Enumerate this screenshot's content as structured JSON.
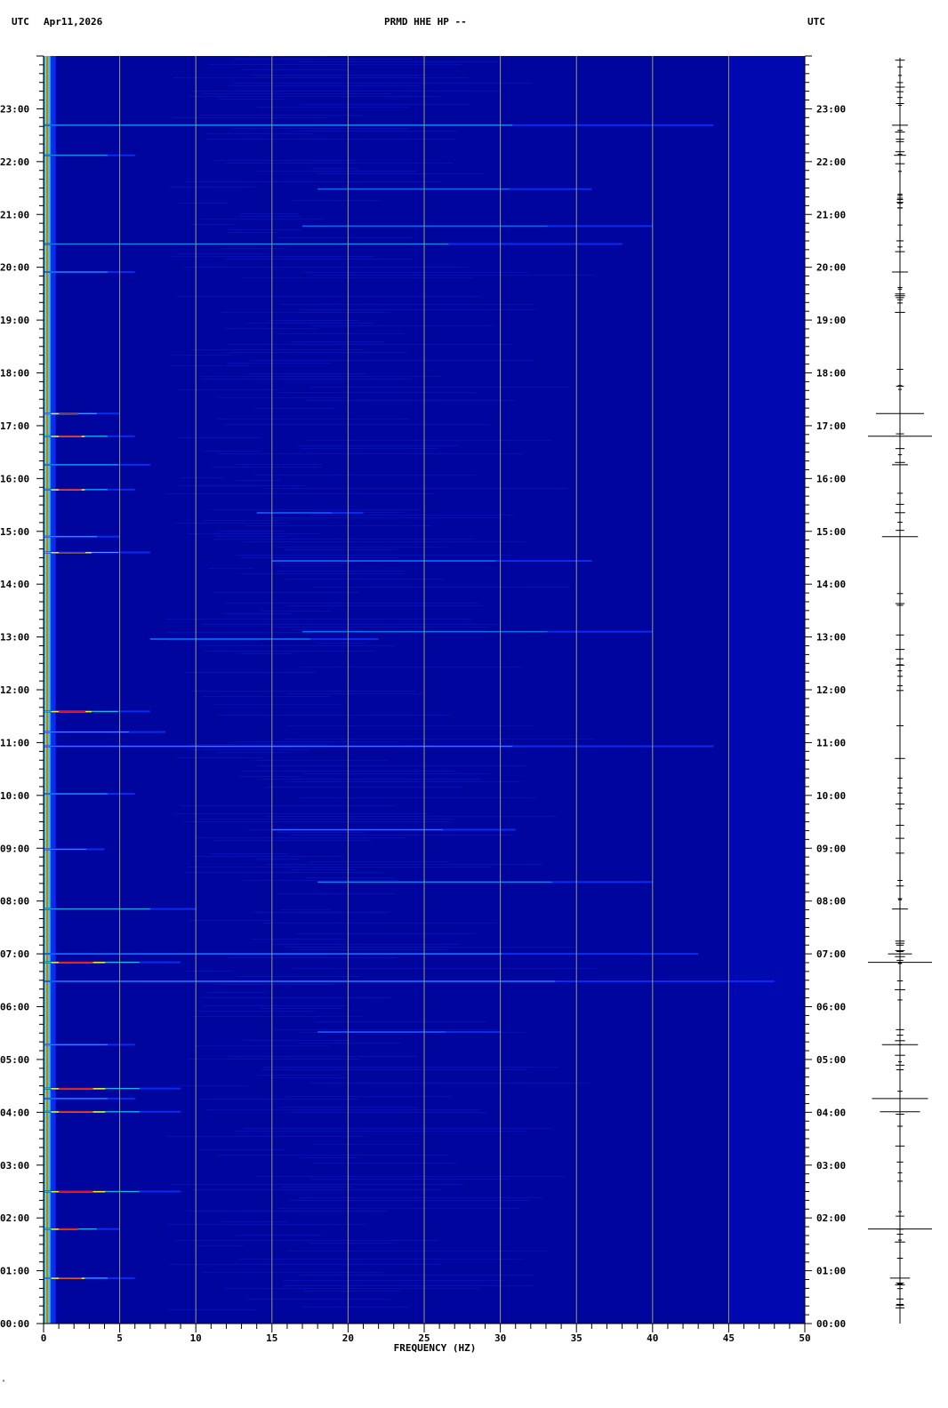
{
  "header": {
    "left_timezone": "UTC",
    "date": "Apr11,2026",
    "station": "PRMD HHE HP --",
    "right_timezone": "UTC"
  },
  "footer_mark": "ᴬ",
  "chart_data": {
    "type": "heatmap",
    "title": "PRMD HHE HP --",
    "xlabel": "FREQUENCY (HZ)",
    "ylabel": "",
    "xlim": [
      0,
      50
    ],
    "ylim": [
      0,
      24
    ],
    "x_ticks": [
      "0",
      "5",
      "10",
      "15",
      "20",
      "25",
      "30",
      "35",
      "40",
      "45",
      "50"
    ],
    "y_ticks": [
      "00:00",
      "01:00",
      "02:00",
      "03:00",
      "04:00",
      "05:00",
      "06:00",
      "07:00",
      "08:00",
      "09:00",
      "10:00",
      "11:00",
      "12:00",
      "13:00",
      "14:00",
      "15:00",
      "16:00",
      "17:00",
      "18:00",
      "19:00",
      "20:00",
      "21:00",
      "22:00",
      "23:00"
    ],
    "grid_x_hz": [
      5,
      10,
      15,
      20,
      25,
      30,
      35,
      40,
      45
    ],
    "colors": {
      "background": "#00059e",
      "high_band": "#0008b0",
      "grid": "#9c9c6c",
      "low": "#0a2cf0",
      "mid": "#25d0e0",
      "high": "#f0f020",
      "peak": "#e01010"
    },
    "events": [
      {
        "hour": 22.69,
        "fmin": 0,
        "fmax": 44,
        "level": 0.7
      },
      {
        "hour": 22.12,
        "fmin": 0,
        "fmax": 6,
        "level": 0.7
      },
      {
        "hour": 21.48,
        "fmin": 18,
        "fmax": 36,
        "level": 0.4
      },
      {
        "hour": 20.78,
        "fmin": 17,
        "fmax": 40,
        "level": 0.4
      },
      {
        "hour": 20.44,
        "fmin": 0,
        "fmax": 38,
        "level": 0.55
      },
      {
        "hour": 19.91,
        "fmin": 0,
        "fmax": 6,
        "level": 0.7
      },
      {
        "hour": 17.23,
        "fmin": 0,
        "fmax": 5,
        "level": 0.95
      },
      {
        "hour": 16.8,
        "fmin": 0,
        "fmax": 6,
        "level": 0.95
      },
      {
        "hour": 16.26,
        "fmin": 0,
        "fmax": 7,
        "level": 0.8
      },
      {
        "hour": 15.79,
        "fmin": 0,
        "fmax": 6,
        "level": 0.85
      },
      {
        "hour": 15.35,
        "fmin": 14,
        "fmax": 21,
        "level": 0.4
      },
      {
        "hour": 14.9,
        "fmin": 0,
        "fmax": 5,
        "level": 0.8
      },
      {
        "hour": 14.6,
        "fmin": 0,
        "fmax": 7,
        "level": 0.9
      },
      {
        "hour": 14.44,
        "fmin": 15,
        "fmax": 36,
        "level": 0.5
      },
      {
        "hour": 13.1,
        "fmin": 17,
        "fmax": 40,
        "level": 0.45
      },
      {
        "hour": 12.96,
        "fmin": 7,
        "fmax": 22,
        "level": 0.55
      },
      {
        "hour": 11.59,
        "fmin": 0,
        "fmax": 7,
        "level": 0.95
      },
      {
        "hour": 11.2,
        "fmin": 0,
        "fmax": 8,
        "level": 0.75
      },
      {
        "hour": 10.93,
        "fmin": 0,
        "fmax": 44,
        "level": 0.65
      },
      {
        "hour": 10.03,
        "fmin": 0,
        "fmax": 6,
        "level": 0.75
      },
      {
        "hour": 9.35,
        "fmin": 15,
        "fmax": 31,
        "level": 0.55
      },
      {
        "hour": 8.98,
        "fmin": 0,
        "fmax": 4,
        "level": 0.7
      },
      {
        "hour": 8.36,
        "fmin": 18,
        "fmax": 40,
        "level": 0.6
      },
      {
        "hour": 7.85,
        "fmin": 0,
        "fmax": 10,
        "level": 0.8
      },
      {
        "hour": 7.0,
        "fmin": 0,
        "fmax": 43,
        "level": 0.6
      },
      {
        "hour": 6.84,
        "fmin": 0,
        "fmax": 9,
        "level": 0.95
      },
      {
        "hour": 6.48,
        "fmin": 0,
        "fmax": 48,
        "level": 0.65
      },
      {
        "hour": 5.52,
        "fmin": 18,
        "fmax": 30,
        "level": 0.4
      },
      {
        "hour": 5.28,
        "fmin": 0,
        "fmax": 6,
        "level": 0.8
      },
      {
        "hour": 4.45,
        "fmin": 0,
        "fmax": 9,
        "level": 0.9
      },
      {
        "hour": 4.26,
        "fmin": 0,
        "fmax": 6,
        "level": 0.7
      },
      {
        "hour": 4.01,
        "fmin": 0,
        "fmax": 9,
        "level": 0.9
      },
      {
        "hour": 2.5,
        "fmin": 0,
        "fmax": 9,
        "level": 0.85
      },
      {
        "hour": 1.79,
        "fmin": 0,
        "fmax": 5,
        "level": 0.95
      },
      {
        "hour": 0.86,
        "fmin": 0,
        "fmax": 6,
        "level": 0.9
      }
    ],
    "seismogram_spikes": [
      {
        "hour": 22.69,
        "amp": 0.2
      },
      {
        "hour": 22.12,
        "amp": 0.15
      },
      {
        "hour": 19.91,
        "amp": 0.2
      },
      {
        "hour": 17.23,
        "amp": 0.6
      },
      {
        "hour": 16.8,
        "amp": 0.8
      },
      {
        "hour": 16.26,
        "amp": 0.2
      },
      {
        "hour": 14.9,
        "amp": 0.45
      },
      {
        "hour": 7.85,
        "amp": 0.2
      },
      {
        "hour": 7.0,
        "amp": 0.3
      },
      {
        "hour": 6.84,
        "amp": 0.8
      },
      {
        "hour": 5.28,
        "amp": 0.45
      },
      {
        "hour": 4.26,
        "amp": 0.7
      },
      {
        "hour": 4.01,
        "amp": 0.5
      },
      {
        "hour": 1.79,
        "amp": 0.8
      },
      {
        "hour": 0.86,
        "amp": 0.25
      }
    ]
  }
}
